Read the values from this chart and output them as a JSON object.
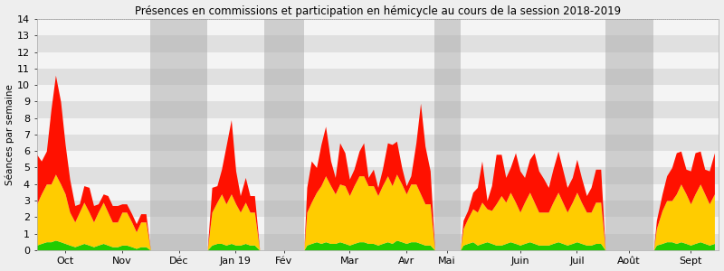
{
  "title": "Présences en commissions et participation en hémicycle au cours de la session 2018-2019",
  "ylabel": "Séances par semaine",
  "ylim": [
    0,
    14
  ],
  "yticks": [
    0,
    1,
    2,
    3,
    4,
    5,
    6,
    7,
    8,
    9,
    10,
    11,
    12,
    13,
    14
  ],
  "month_labels": [
    "Oct",
    "Nov",
    "Déc",
    "Jan 19",
    "Fév",
    "Mar",
    "Avr",
    "Mai",
    "Juin",
    "Juil",
    "Août",
    "Sept"
  ],
  "color_green": "#22cc00",
  "color_yellow": "#ffcc00",
  "color_red": "#ff1100",
  "color_bg_light": "#e0e0e0",
  "color_bg_white": "#f4f4f4",
  "color_shade": "#aaaaaa",
  "gray_bands": [
    {
      "xstart": 2.0,
      "xend": 3.0
    },
    {
      "xstart": 4.0,
      "xend": 4.7
    },
    {
      "xstart": 7.0,
      "xend": 7.45
    },
    {
      "xstart": 10.0,
      "xend": 10.85
    }
  ],
  "x_min": 0,
  "x_max": 12,
  "x": [
    0.0,
    0.08,
    0.17,
    0.25,
    0.33,
    0.42,
    0.5,
    0.58,
    0.67,
    0.75,
    0.83,
    0.92,
    1.0,
    1.08,
    1.17,
    1.25,
    1.33,
    1.42,
    1.5,
    1.58,
    1.67,
    1.75,
    1.83,
    1.92,
    2.0,
    3.0,
    3.08,
    3.17,
    3.25,
    3.33,
    3.42,
    3.5,
    3.58,
    3.67,
    3.75,
    3.83,
    3.92,
    4.0,
    4.7,
    4.75,
    4.83,
    4.92,
    5.0,
    5.08,
    5.17,
    5.25,
    5.33,
    5.42,
    5.5,
    5.58,
    5.67,
    5.75,
    5.83,
    5.92,
    6.0,
    6.08,
    6.17,
    6.25,
    6.33,
    6.42,
    6.5,
    6.58,
    6.67,
    6.75,
    6.83,
    6.92,
    7.0,
    7.45,
    7.5,
    7.58,
    7.67,
    7.75,
    7.83,
    7.92,
    8.0,
    8.08,
    8.17,
    8.25,
    8.33,
    8.42,
    8.5,
    8.58,
    8.67,
    8.75,
    8.83,
    8.92,
    9.0,
    9.08,
    9.17,
    9.25,
    9.33,
    9.42,
    9.5,
    9.58,
    9.67,
    9.75,
    9.83,
    9.92,
    10.0,
    10.85,
    10.9,
    11.0,
    11.08,
    11.17,
    11.25,
    11.33,
    11.42,
    11.5,
    11.58,
    11.67,
    11.75,
    11.83,
    11.92
  ],
  "green": [
    0.3,
    0.4,
    0.5,
    0.5,
    0.6,
    0.5,
    0.4,
    0.3,
    0.2,
    0.3,
    0.4,
    0.3,
    0.2,
    0.3,
    0.4,
    0.3,
    0.2,
    0.2,
    0.3,
    0.3,
    0.2,
    0.1,
    0.2,
    0.2,
    0.0,
    0.0,
    0.3,
    0.4,
    0.4,
    0.3,
    0.4,
    0.3,
    0.3,
    0.4,
    0.3,
    0.3,
    0.0,
    0.0,
    0.0,
    0.3,
    0.4,
    0.5,
    0.4,
    0.5,
    0.4,
    0.4,
    0.5,
    0.4,
    0.3,
    0.4,
    0.5,
    0.5,
    0.4,
    0.4,
    0.3,
    0.4,
    0.5,
    0.4,
    0.6,
    0.5,
    0.4,
    0.5,
    0.5,
    0.4,
    0.3,
    0.3,
    0.0,
    0.0,
    0.3,
    0.4,
    0.5,
    0.3,
    0.4,
    0.5,
    0.4,
    0.3,
    0.3,
    0.4,
    0.5,
    0.4,
    0.3,
    0.4,
    0.5,
    0.4,
    0.3,
    0.3,
    0.3,
    0.4,
    0.5,
    0.4,
    0.3,
    0.4,
    0.5,
    0.4,
    0.3,
    0.3,
    0.4,
    0.4,
    0.0,
    0.0,
    0.3,
    0.4,
    0.5,
    0.5,
    0.4,
    0.5,
    0.4,
    0.3,
    0.4,
    0.5,
    0.4,
    0.3,
    0.4
  ],
  "yellow": [
    2.5,
    3.0,
    3.5,
    3.5,
    4.0,
    3.5,
    3.0,
    2.0,
    1.5,
    2.0,
    2.5,
    2.0,
    1.5,
    2.0,
    2.5,
    2.0,
    1.5,
    1.5,
    2.0,
    2.0,
    1.5,
    1.0,
    1.5,
    1.5,
    0.0,
    0.0,
    2.0,
    2.5,
    3.0,
    2.5,
    3.0,
    2.5,
    2.0,
    2.5,
    2.0,
    2.0,
    0.0,
    0.0,
    0.0,
    2.0,
    2.5,
    3.0,
    3.5,
    4.0,
    3.5,
    3.0,
    3.5,
    3.5,
    3.0,
    3.5,
    4.0,
    4.0,
    3.5,
    3.5,
    3.0,
    3.5,
    4.0,
    3.5,
    4.0,
    3.5,
    3.0,
    3.5,
    3.5,
    3.0,
    2.5,
    2.5,
    0.0,
    0.0,
    1.0,
    1.5,
    2.0,
    2.0,
    2.5,
    2.0,
    2.0,
    2.5,
    3.0,
    2.5,
    3.0,
    2.5,
    2.0,
    2.5,
    3.0,
    2.5,
    2.0,
    2.0,
    2.0,
    2.5,
    3.0,
    2.5,
    2.0,
    2.5,
    3.0,
    2.5,
    2.0,
    2.0,
    2.5,
    2.5,
    0.0,
    0.0,
    1.0,
    2.0,
    2.5,
    2.5,
    3.0,
    3.5,
    3.0,
    2.5,
    3.0,
    3.5,
    3.0,
    2.5,
    3.0
  ],
  "red": [
    3.0,
    2.0,
    2.0,
    4.5,
    6.0,
    5.0,
    3.0,
    2.0,
    1.0,
    0.5,
    1.0,
    1.5,
    1.0,
    0.5,
    0.5,
    1.0,
    1.0,
    1.0,
    0.5,
    0.5,
    0.5,
    0.5,
    0.5,
    0.5,
    0.0,
    0.0,
    1.5,
    1.0,
    1.5,
    3.5,
    4.5,
    2.0,
    1.0,
    1.5,
    1.0,
    1.0,
    0.0,
    0.0,
    0.0,
    1.5,
    2.5,
    1.5,
    2.5,
    3.0,
    1.5,
    1.0,
    2.5,
    2.0,
    1.0,
    1.0,
    1.5,
    2.0,
    0.5,
    1.0,
    0.5,
    1.0,
    2.0,
    2.5,
    2.0,
    1.0,
    0.5,
    0.5,
    2.5,
    5.5,
    3.5,
    2.0,
    0.0,
    0.0,
    0.5,
    0.5,
    1.0,
    1.5,
    2.5,
    0.5,
    1.5,
    3.0,
    2.5,
    1.5,
    1.5,
    3.0,
    2.5,
    1.5,
    2.0,
    3.0,
    2.5,
    2.0,
    1.5,
    2.0,
    2.5,
    2.0,
    1.5,
    1.5,
    2.0,
    1.5,
    1.0,
    1.5,
    2.0,
    2.0,
    0.0,
    0.0,
    0.5,
    1.0,
    1.5,
    2.0,
    2.5,
    2.0,
    1.5,
    2.0,
    2.5,
    2.0,
    1.5,
    2.0,
    2.5
  ]
}
